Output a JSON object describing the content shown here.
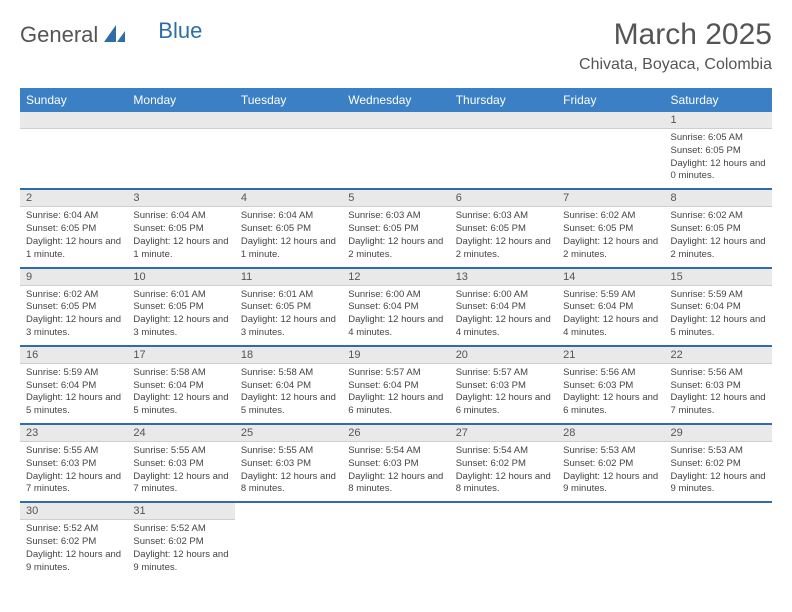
{
  "colors": {
    "header_bg": "#3b7fc4",
    "header_text": "#ffffff",
    "accent": "#2e6ea8",
    "daynum_bg": "#e9e9e9",
    "body_text": "#444444",
    "title_color": "#555555",
    "page_bg": "#ffffff"
  },
  "logo": {
    "part1": "General",
    "part2": "Blue"
  },
  "title": "March 2025",
  "subtitle": "Chivata, Boyaca, Colombia",
  "day_headers": [
    "Sunday",
    "Monday",
    "Tuesday",
    "Wednesday",
    "Thursday",
    "Friday",
    "Saturday"
  ],
  "weeks": [
    [
      null,
      null,
      null,
      null,
      null,
      null,
      {
        "n": "1",
        "sr": "Sunrise: 6:05 AM",
        "ss": "Sunset: 6:05 PM",
        "dl": "Daylight: 12 hours and 0 minutes."
      }
    ],
    [
      {
        "n": "2",
        "sr": "Sunrise: 6:04 AM",
        "ss": "Sunset: 6:05 PM",
        "dl": "Daylight: 12 hours and 1 minute."
      },
      {
        "n": "3",
        "sr": "Sunrise: 6:04 AM",
        "ss": "Sunset: 6:05 PM",
        "dl": "Daylight: 12 hours and 1 minute."
      },
      {
        "n": "4",
        "sr": "Sunrise: 6:04 AM",
        "ss": "Sunset: 6:05 PM",
        "dl": "Daylight: 12 hours and 1 minute."
      },
      {
        "n": "5",
        "sr": "Sunrise: 6:03 AM",
        "ss": "Sunset: 6:05 PM",
        "dl": "Daylight: 12 hours and 2 minutes."
      },
      {
        "n": "6",
        "sr": "Sunrise: 6:03 AM",
        "ss": "Sunset: 6:05 PM",
        "dl": "Daylight: 12 hours and 2 minutes."
      },
      {
        "n": "7",
        "sr": "Sunrise: 6:02 AM",
        "ss": "Sunset: 6:05 PM",
        "dl": "Daylight: 12 hours and 2 minutes."
      },
      {
        "n": "8",
        "sr": "Sunrise: 6:02 AM",
        "ss": "Sunset: 6:05 PM",
        "dl": "Daylight: 12 hours and 2 minutes."
      }
    ],
    [
      {
        "n": "9",
        "sr": "Sunrise: 6:02 AM",
        "ss": "Sunset: 6:05 PM",
        "dl": "Daylight: 12 hours and 3 minutes."
      },
      {
        "n": "10",
        "sr": "Sunrise: 6:01 AM",
        "ss": "Sunset: 6:05 PM",
        "dl": "Daylight: 12 hours and 3 minutes."
      },
      {
        "n": "11",
        "sr": "Sunrise: 6:01 AM",
        "ss": "Sunset: 6:05 PM",
        "dl": "Daylight: 12 hours and 3 minutes."
      },
      {
        "n": "12",
        "sr": "Sunrise: 6:00 AM",
        "ss": "Sunset: 6:04 PM",
        "dl": "Daylight: 12 hours and 4 minutes."
      },
      {
        "n": "13",
        "sr": "Sunrise: 6:00 AM",
        "ss": "Sunset: 6:04 PM",
        "dl": "Daylight: 12 hours and 4 minutes."
      },
      {
        "n": "14",
        "sr": "Sunrise: 5:59 AM",
        "ss": "Sunset: 6:04 PM",
        "dl": "Daylight: 12 hours and 4 minutes."
      },
      {
        "n": "15",
        "sr": "Sunrise: 5:59 AM",
        "ss": "Sunset: 6:04 PM",
        "dl": "Daylight: 12 hours and 5 minutes."
      }
    ],
    [
      {
        "n": "16",
        "sr": "Sunrise: 5:59 AM",
        "ss": "Sunset: 6:04 PM",
        "dl": "Daylight: 12 hours and 5 minutes."
      },
      {
        "n": "17",
        "sr": "Sunrise: 5:58 AM",
        "ss": "Sunset: 6:04 PM",
        "dl": "Daylight: 12 hours and 5 minutes."
      },
      {
        "n": "18",
        "sr": "Sunrise: 5:58 AM",
        "ss": "Sunset: 6:04 PM",
        "dl": "Daylight: 12 hours and 5 minutes."
      },
      {
        "n": "19",
        "sr": "Sunrise: 5:57 AM",
        "ss": "Sunset: 6:04 PM",
        "dl": "Daylight: 12 hours and 6 minutes."
      },
      {
        "n": "20",
        "sr": "Sunrise: 5:57 AM",
        "ss": "Sunset: 6:03 PM",
        "dl": "Daylight: 12 hours and 6 minutes."
      },
      {
        "n": "21",
        "sr": "Sunrise: 5:56 AM",
        "ss": "Sunset: 6:03 PM",
        "dl": "Daylight: 12 hours and 6 minutes."
      },
      {
        "n": "22",
        "sr": "Sunrise: 5:56 AM",
        "ss": "Sunset: 6:03 PM",
        "dl": "Daylight: 12 hours and 7 minutes."
      }
    ],
    [
      {
        "n": "23",
        "sr": "Sunrise: 5:55 AM",
        "ss": "Sunset: 6:03 PM",
        "dl": "Daylight: 12 hours and 7 minutes."
      },
      {
        "n": "24",
        "sr": "Sunrise: 5:55 AM",
        "ss": "Sunset: 6:03 PM",
        "dl": "Daylight: 12 hours and 7 minutes."
      },
      {
        "n": "25",
        "sr": "Sunrise: 5:55 AM",
        "ss": "Sunset: 6:03 PM",
        "dl": "Daylight: 12 hours and 8 minutes."
      },
      {
        "n": "26",
        "sr": "Sunrise: 5:54 AM",
        "ss": "Sunset: 6:03 PM",
        "dl": "Daylight: 12 hours and 8 minutes."
      },
      {
        "n": "27",
        "sr": "Sunrise: 5:54 AM",
        "ss": "Sunset: 6:02 PM",
        "dl": "Daylight: 12 hours and 8 minutes."
      },
      {
        "n": "28",
        "sr": "Sunrise: 5:53 AM",
        "ss": "Sunset: 6:02 PM",
        "dl": "Daylight: 12 hours and 9 minutes."
      },
      {
        "n": "29",
        "sr": "Sunrise: 5:53 AM",
        "ss": "Sunset: 6:02 PM",
        "dl": "Daylight: 12 hours and 9 minutes."
      }
    ],
    [
      {
        "n": "30",
        "sr": "Sunrise: 5:52 AM",
        "ss": "Sunset: 6:02 PM",
        "dl": "Daylight: 12 hours and 9 minutes."
      },
      {
        "n": "31",
        "sr": "Sunrise: 5:52 AM",
        "ss": "Sunset: 6:02 PM",
        "dl": "Daylight: 12 hours and 9 minutes."
      },
      null,
      null,
      null,
      null,
      null
    ]
  ]
}
